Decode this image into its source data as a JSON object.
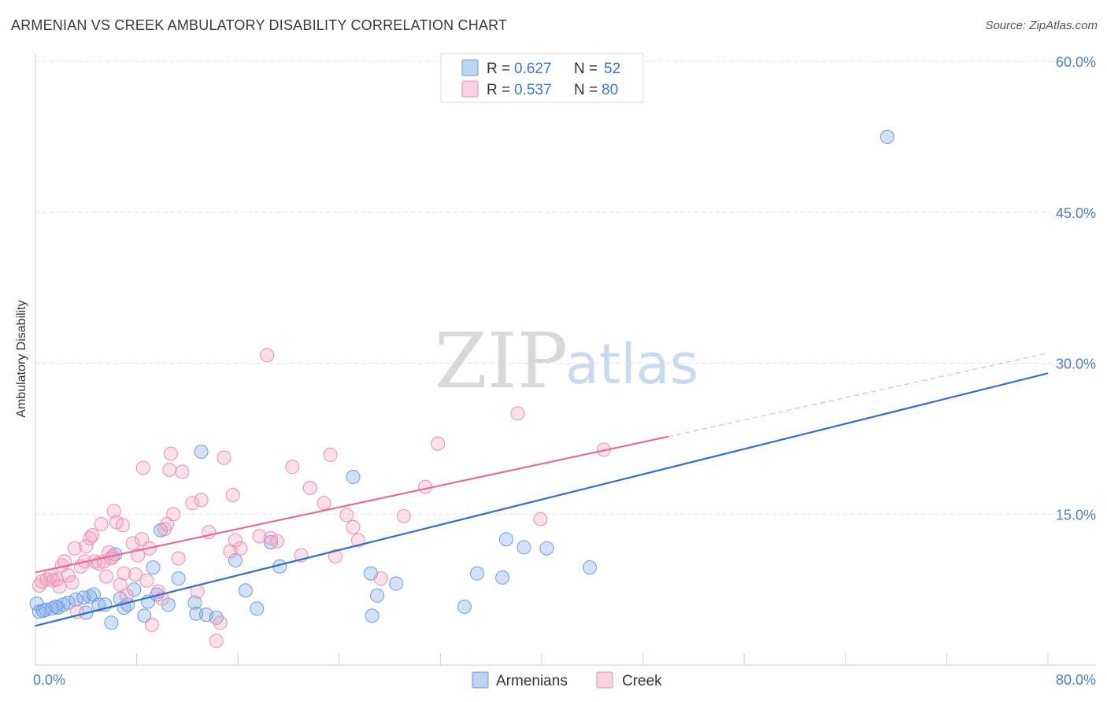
{
  "title": "ARMENIAN VS CREEK AMBULATORY DISABILITY CORRELATION CHART",
  "source": "Source: ZipAtlas.com",
  "watermark": {
    "part1": "ZIP",
    "part2": "atlas"
  },
  "chart_data": {
    "type": "scatter",
    "title": "ARMENIAN VS CREEK AMBULATORY DISABILITY CORRELATION CHART",
    "xlabel": "",
    "ylabel": "Ambulatory Disability",
    "xlim": [
      0,
      80
    ],
    "ylim": [
      0,
      60
    ],
    "x_tick_labels": [
      "0.0%",
      "80.0%"
    ],
    "y_ticks": [
      15,
      30,
      45,
      60
    ],
    "y_tick_labels": [
      "15.0%",
      "30.0%",
      "45.0%",
      "60.0%"
    ],
    "grid": "horizontal dashed",
    "legend_position": "top-center",
    "colors": {
      "armenians": "#7aaaea",
      "creek": "#f4a3bf",
      "armenians_line": "#2f72cc",
      "creek_line": "#e86b97"
    },
    "legend": [
      {
        "r_label": "R = ",
        "r_value": "0.627",
        "n_label": "N = ",
        "n_value": "52"
      },
      {
        "r_label": "R = ",
        "r_value": "0.537",
        "n_label": "N = ",
        "n_value": "80"
      }
    ],
    "series": [
      {
        "name": "Armenians",
        "r": 0.627,
        "n": 52,
        "trend": {
          "x": [
            0,
            80
          ],
          "y": [
            3.9,
            29.0
          ],
          "dashed_from": null
        },
        "points": [
          [
            0.1,
            6.1
          ],
          [
            0.3,
            5.3
          ],
          [
            0.8,
            5.5
          ],
          [
            1.3,
            5.6
          ],
          [
            1.8,
            5.7
          ],
          [
            2.2,
            6.0
          ],
          [
            2.6,
            6.2
          ],
          [
            3.2,
            6.5
          ],
          [
            3.8,
            6.7
          ],
          [
            4.0,
            5.2
          ],
          [
            4.3,
            6.8
          ],
          [
            4.6,
            7.0
          ],
          [
            5.0,
            6.0
          ],
          [
            5.5,
            6.0
          ],
          [
            6.0,
            4.2
          ],
          [
            6.3,
            11.0
          ],
          [
            6.7,
            6.6
          ],
          [
            7.0,
            5.7
          ],
          [
            7.3,
            6.0
          ],
          [
            7.8,
            7.5
          ],
          [
            8.6,
            4.9
          ],
          [
            8.9,
            6.3
          ],
          [
            9.3,
            9.7
          ],
          [
            9.6,
            7.0
          ],
          [
            9.9,
            13.4
          ],
          [
            10.5,
            6.0
          ],
          [
            11.3,
            8.6
          ],
          [
            12.6,
            6.2
          ],
          [
            12.7,
            5.1
          ],
          [
            13.1,
            21.2
          ],
          [
            13.5,
            5.0
          ],
          [
            14.3,
            4.7
          ],
          [
            15.8,
            10.4
          ],
          [
            16.6,
            7.4
          ],
          [
            17.5,
            5.6
          ],
          [
            18.6,
            12.2
          ],
          [
            19.3,
            9.8
          ],
          [
            25.1,
            18.7
          ],
          [
            26.5,
            9.1
          ],
          [
            26.6,
            4.9
          ],
          [
            27.0,
            6.9
          ],
          [
            28.5,
            8.1
          ],
          [
            33.9,
            5.8
          ],
          [
            34.9,
            9.1
          ],
          [
            36.9,
            8.7
          ],
          [
            37.2,
            12.5
          ],
          [
            38.6,
            11.7
          ],
          [
            40.4,
            11.6
          ],
          [
            43.8,
            9.7
          ],
          [
            67.3,
            52.5
          ],
          [
            0.6,
            5.4
          ],
          [
            1.6,
            5.8
          ]
        ]
      },
      {
        "name": "Creek",
        "r": 0.537,
        "n": 80,
        "trend": {
          "x": [
            0,
            50
          ],
          "y": [
            9.2,
            22.7
          ],
          "dashed_to": [
            80,
            31.0
          ]
        },
        "points": [
          [
            0.3,
            7.9
          ],
          [
            0.5,
            8.3
          ],
          [
            0.9,
            8.5
          ],
          [
            1.2,
            8.9
          ],
          [
            1.4,
            8.4
          ],
          [
            1.7,
            8.5
          ],
          [
            1.9,
            7.8
          ],
          [
            2.1,
            9.9
          ],
          [
            2.3,
            10.3
          ],
          [
            2.6,
            8.9
          ],
          [
            2.9,
            8.2
          ],
          [
            3.1,
            11.6
          ],
          [
            3.3,
            5.3
          ],
          [
            3.6,
            9.8
          ],
          [
            3.9,
            10.3
          ],
          [
            4.0,
            11.8
          ],
          [
            4.3,
            12.6
          ],
          [
            4.5,
            12.9
          ],
          [
            4.7,
            10.3
          ],
          [
            5.0,
            10.1
          ],
          [
            5.2,
            14.0
          ],
          [
            5.4,
            10.3
          ],
          [
            5.6,
            8.8
          ],
          [
            5.8,
            11.2
          ],
          [
            6.1,
            10.8
          ],
          [
            6.2,
            15.3
          ],
          [
            6.4,
            14.2
          ],
          [
            6.7,
            8.0
          ],
          [
            6.9,
            13.9
          ],
          [
            7.0,
            9.1
          ],
          [
            7.2,
            6.9
          ],
          [
            7.7,
            12.1
          ],
          [
            7.9,
            9.0
          ],
          [
            8.1,
            10.9
          ],
          [
            8.4,
            12.5
          ],
          [
            8.5,
            19.6
          ],
          [
            8.8,
            8.4
          ],
          [
            9.0,
            11.6
          ],
          [
            9.2,
            4.0
          ],
          [
            9.7,
            7.3
          ],
          [
            10.2,
            13.5
          ],
          [
            10.4,
            14.0
          ],
          [
            10.6,
            19.4
          ],
          [
            10.7,
            21.0
          ],
          [
            10.9,
            15.0
          ],
          [
            11.3,
            10.6
          ],
          [
            11.6,
            19.2
          ],
          [
            12.4,
            16.1
          ],
          [
            12.8,
            7.3
          ],
          [
            13.1,
            16.4
          ],
          [
            13.7,
            13.2
          ],
          [
            14.3,
            2.4
          ],
          [
            14.6,
            4.2
          ],
          [
            14.9,
            20.6
          ],
          [
            15.4,
            11.3
          ],
          [
            15.6,
            16.9
          ],
          [
            15.8,
            12.4
          ],
          [
            16.2,
            11.6
          ],
          [
            17.7,
            12.8
          ],
          [
            18.3,
            30.8
          ],
          [
            18.6,
            12.6
          ],
          [
            19.1,
            12.3
          ],
          [
            20.3,
            19.7
          ],
          [
            21.0,
            10.9
          ],
          [
            21.7,
            17.6
          ],
          [
            22.8,
            16.1
          ],
          [
            23.3,
            20.9
          ],
          [
            23.7,
            10.8
          ],
          [
            24.6,
            14.9
          ],
          [
            25.1,
            13.7
          ],
          [
            25.5,
            12.4
          ],
          [
            27.3,
            8.6
          ],
          [
            29.1,
            14.8
          ],
          [
            30.8,
            17.7
          ],
          [
            31.8,
            22.0
          ],
          [
            38.1,
            25.0
          ],
          [
            39.9,
            14.5
          ],
          [
            44.9,
            21.4
          ],
          [
            10.0,
            6.6
          ],
          [
            6.0,
            10.6
          ]
        ]
      }
    ]
  },
  "bottom_legend": [
    {
      "label": "Armenians"
    },
    {
      "label": "Creek"
    }
  ]
}
